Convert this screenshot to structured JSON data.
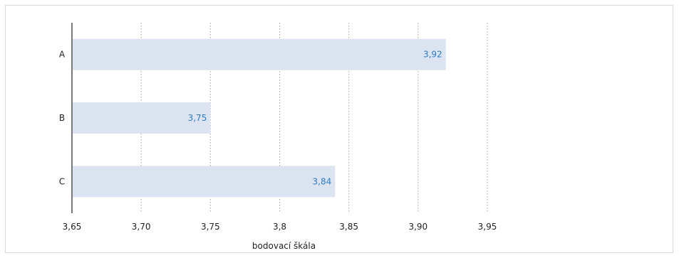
{
  "chart_data": {
    "type": "bar",
    "orientation": "horizontal",
    "categories": [
      "A",
      "B",
      "C"
    ],
    "values": [
      3.92,
      3.75,
      3.84
    ],
    "value_labels": [
      "3,92",
      "3,75",
      "3,84"
    ],
    "xlabel": "bodovací škála",
    "ylabel": "",
    "xlim": [
      3.65,
      3.95
    ],
    "x_ticks": [
      3.65,
      3.7,
      3.75,
      3.8,
      3.85,
      3.9,
      3.95
    ],
    "x_tick_labels": [
      "3,65",
      "3,70",
      "3,75",
      "3,8",
      "3,85",
      "3,90",
      "3,95"
    ],
    "grid": "vertical dotted",
    "legend": "none",
    "colors": {
      "bar": "#dce4f2",
      "value_label": "#2e7bc0",
      "axis": "#222222",
      "grid": "#a6a6a6",
      "border": "#d9d9d9"
    }
  }
}
